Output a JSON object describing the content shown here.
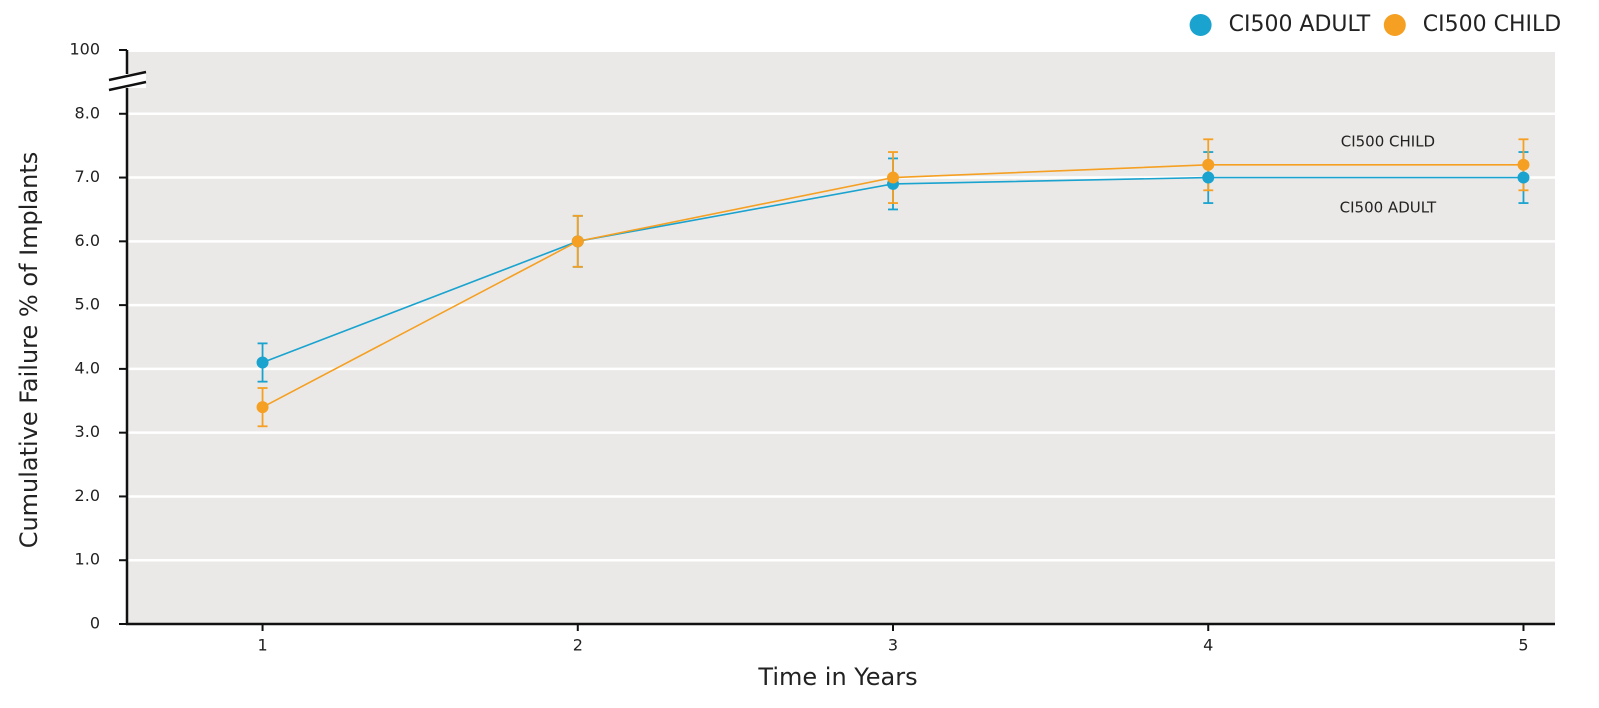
{
  "chart_data": {
    "type": "line",
    "x_label": "Time in Years",
    "y_label": "Cumulative Failure % of Implants",
    "x": [
      1,
      2,
      3,
      4,
      5
    ],
    "xlim": [
      0.57,
      5.1
    ],
    "xticks": [
      1,
      2,
      3,
      4,
      5
    ],
    "ylim": [
      0,
      100
    ],
    "y_break": [
      8,
      100
    ],
    "yticks": [
      0,
      {
        "value": 1,
        "label": "1.0"
      },
      {
        "value": 2,
        "label": "2.0"
      },
      {
        "value": 3,
        "label": "3.0"
      },
      {
        "value": 4,
        "label": "4.0"
      },
      {
        "value": 5,
        "label": "5.0"
      },
      {
        "value": 6,
        "label": "6.0"
      },
      {
        "value": 7,
        "label": "7.0"
      },
      {
        "value": 8,
        "label": "8.0"
      },
      100
    ],
    "grid": true,
    "legend": "top-right",
    "series": [
      {
        "name": "CI500 ADULT",
        "color": "#1aa3cf",
        "values": [
          4.1,
          6.0,
          6.9,
          7.0,
          7.0
        ],
        "errors": [
          0.3,
          0.4,
          0.4,
          0.4,
          0.4
        ]
      },
      {
        "name": "CI500 CHILD",
        "color": "#f5a023",
        "values": [
          3.4,
          6.0,
          7.0,
          7.2,
          7.2
        ],
        "errors": [
          0.3,
          0.4,
          0.4,
          0.4,
          0.4
        ]
      }
    ],
    "annotations": [
      {
        "text": "CI500 CHILD",
        "x": 4.57,
        "y": 7.56
      },
      {
        "text": "CI500 ADULT",
        "x": 4.57,
        "y": 6.52
      }
    ]
  }
}
